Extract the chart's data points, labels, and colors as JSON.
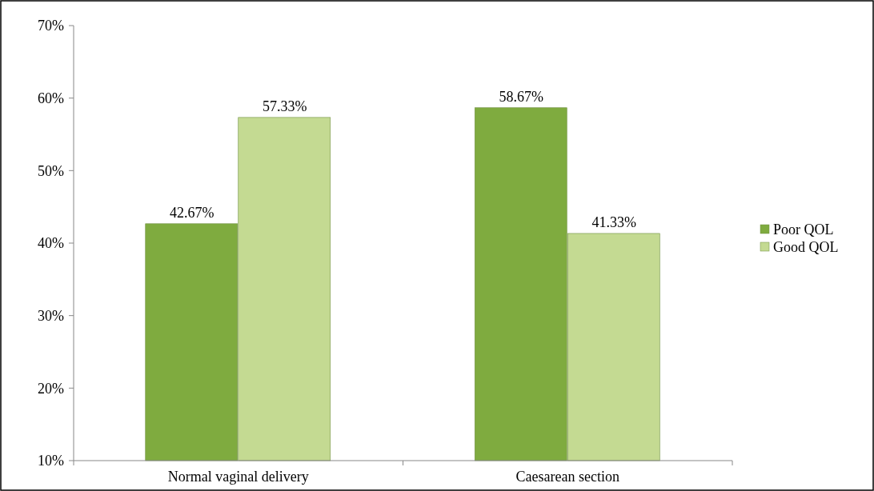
{
  "chart_data": {
    "type": "bar",
    "categories": [
      "Normal vaginal delivery",
      "Caesarean section"
    ],
    "series": [
      {
        "name": "Poor QOL",
        "color": "#7fab3f",
        "values": [
          42.67,
          58.67
        ],
        "value_labels": [
          "42.67%",
          "58.67%"
        ]
      },
      {
        "name": "Good QOL",
        "color": "#c4da92",
        "values": [
          57.33,
          41.33
        ],
        "value_labels": [
          "57.33%",
          "41.33%"
        ]
      }
    ],
    "ylim": [
      10,
      70
    ],
    "yticks": [
      {
        "value": 10,
        "label": "10%"
      },
      {
        "value": 20,
        "label": "20%"
      },
      {
        "value": 30,
        "label": "30%"
      },
      {
        "value": 40,
        "label": "40%"
      },
      {
        "value": 50,
        "label": "50%"
      },
      {
        "value": 60,
        "label": "60%"
      },
      {
        "value": 70,
        "label": "70%"
      }
    ],
    "legend": "right",
    "grid": false
  }
}
